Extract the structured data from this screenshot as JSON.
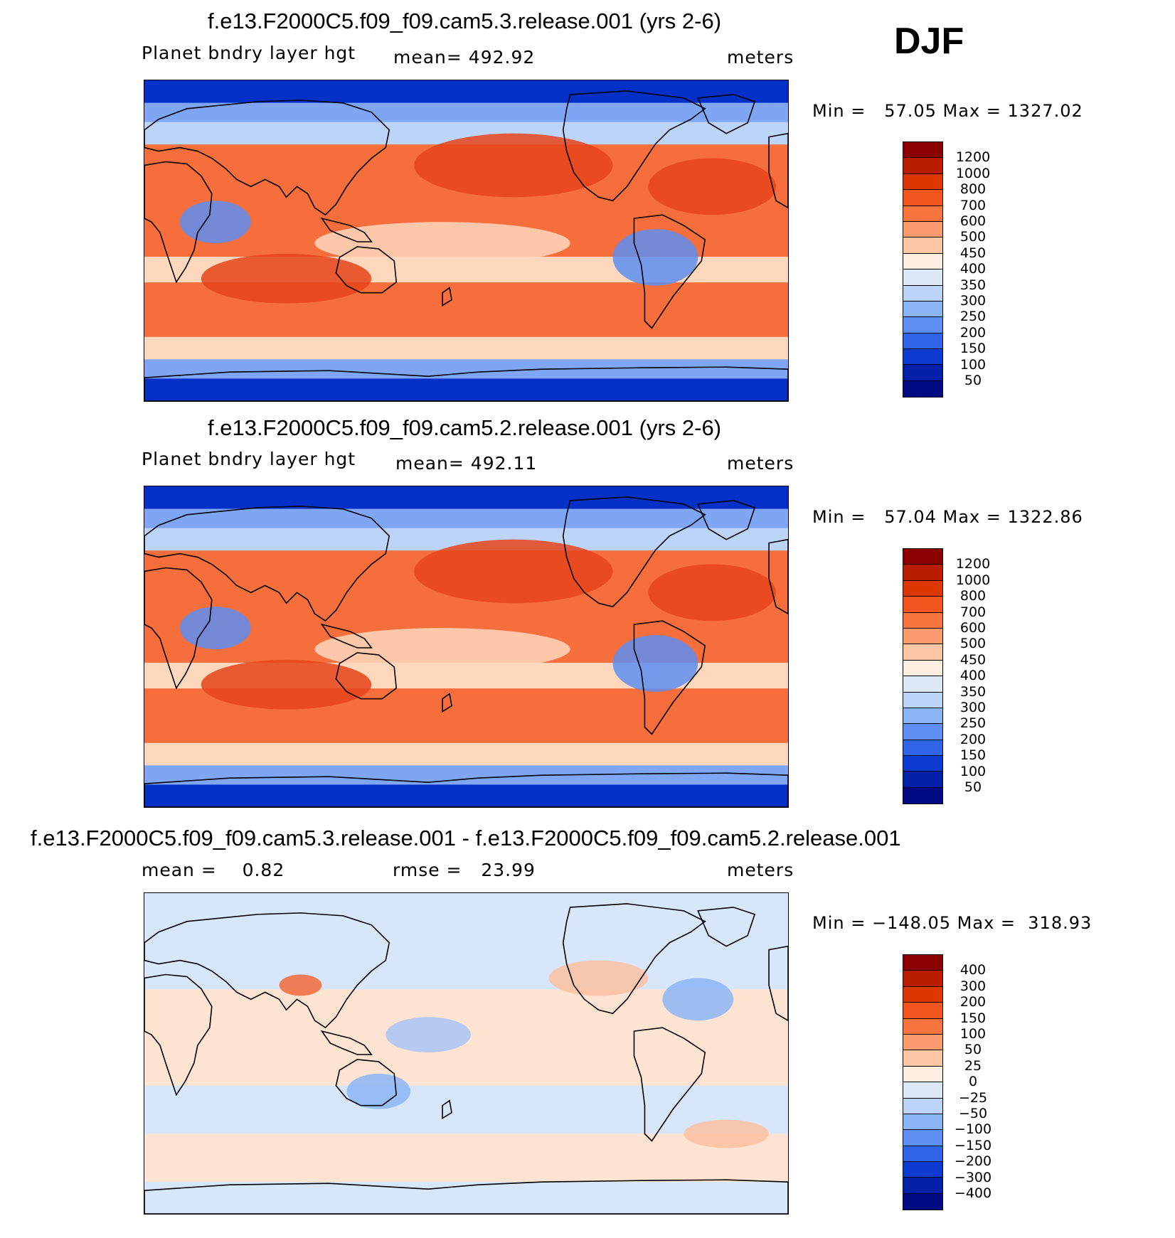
{
  "season": "DJF",
  "panels": [
    {
      "title": "f.e13.F2000C5.f09_f09.cam5.3.release.001 (yrs 2-6)",
      "left_label": "Planet bndry layer hgt",
      "mean_label": "mean= 492.92",
      "units": "meters",
      "minmax": "Min =   57.05 Max = 1327.02",
      "colorbar": {
        "labels": [
          "1200",
          "1000",
          "800",
          "700",
          "600",
          "500",
          "450",
          "400",
          "350",
          "300",
          "250",
          "200",
          "150",
          "100",
          "50"
        ],
        "colors": [
          "#8b0000",
          "#b81d00",
          "#dd3700",
          "#f25420",
          "#f8743e",
          "#fa9a6e",
          "#fdc7a6",
          "#feeedf",
          "#dde9f8",
          "#bcd4f8",
          "#8cb5f6",
          "#5d8ff2",
          "#2f63e8",
          "#0d3bd2",
          "#0420a8",
          "#000a82"
        ]
      },
      "map_palette": {
        "ocean_warm": "#f56e3c",
        "ocean_cool": "#fed8bd",
        "polar": "#0530c8",
        "midlat": "#7fa6f4"
      }
    },
    {
      "title": "f.e13.F2000C5.f09_f09.cam5.2.release.001 (yrs 2-6)",
      "left_label": "Planet bndry layer hgt",
      "mean_label": "mean= 492.11",
      "units": "meters",
      "minmax": "Min =   57.04 Max = 1322.86",
      "colorbar": {
        "labels": [
          "1200",
          "1000",
          "800",
          "700",
          "600",
          "500",
          "450",
          "400",
          "350",
          "300",
          "250",
          "200",
          "150",
          "100",
          "50"
        ],
        "colors": [
          "#8b0000",
          "#b81d00",
          "#dd3700",
          "#f25420",
          "#f8743e",
          "#fa9a6e",
          "#fdc7a6",
          "#feeedf",
          "#dde9f8",
          "#bcd4f8",
          "#8cb5f6",
          "#5d8ff2",
          "#2f63e8",
          "#0d3bd2",
          "#0420a8",
          "#000a82"
        ]
      },
      "map_palette": {
        "ocean_warm": "#f56e3c",
        "ocean_cool": "#fed8bd",
        "polar": "#0530c8",
        "midlat": "#7fa6f4"
      }
    },
    {
      "title": "f.e13.F2000C5.f09_f09.cam5.3.release.001 - f.e13.F2000C5.f09_f09.cam5.2.release.001",
      "left_label": "mean =    0.82",
      "mean_label": "rmse =   23.99",
      "units": "meters",
      "minmax": "Min = −148.05 Max =  318.93",
      "colorbar": {
        "labels": [
          "400",
          "300",
          "200",
          "150",
          "100",
          "50",
          "25",
          "0",
          "−25",
          "−50",
          "−100",
          "−150",
          "−200",
          "−300",
          "−400"
        ],
        "colors": [
          "#8b0000",
          "#b81d00",
          "#dd3700",
          "#f25420",
          "#f8743e",
          "#fa9a6e",
          "#fdc7a6",
          "#feeedf",
          "#dde9f8",
          "#bcd4f8",
          "#8cb5f6",
          "#5d8ff2",
          "#2f63e8",
          "#0d3bd2",
          "#0420a8",
          "#000a82"
        ]
      },
      "map_palette": {
        "ocean_warm": "#fde3d1",
        "ocean_cool": "#d8e6fa",
        "polar": "#d8e6fa",
        "midlat": "#a9c4f6"
      }
    }
  ]
}
